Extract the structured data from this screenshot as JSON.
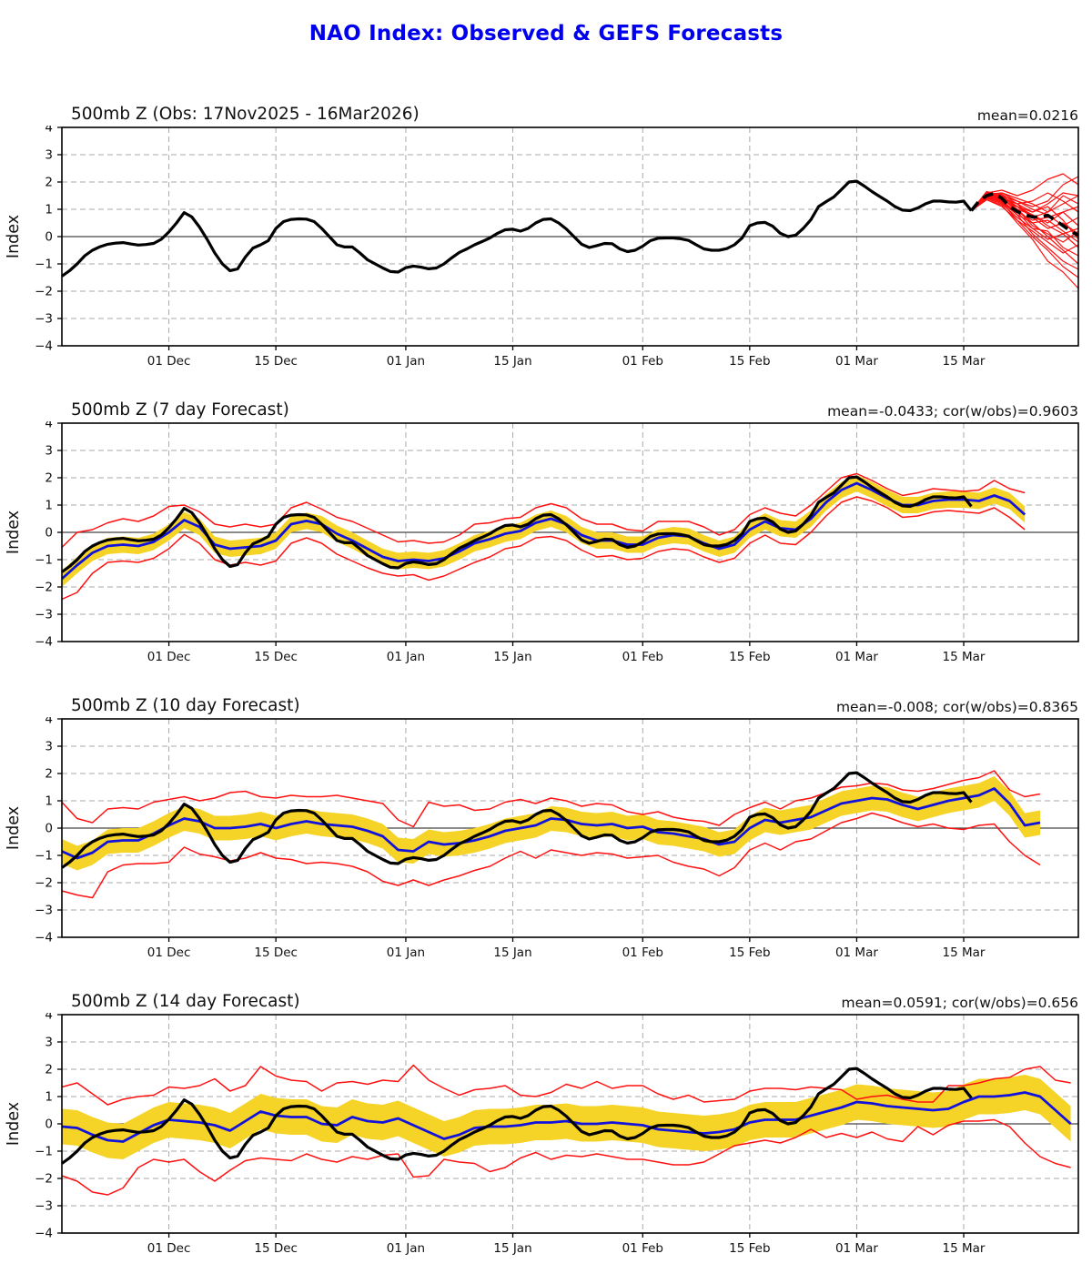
{
  "page": {
    "title": "NAO Index: Observed & GEFS Forecasts"
  },
  "colors": {
    "title_blue": "#0000EE",
    "observed_black": "#000000",
    "ensemble_red": "#FF1010",
    "mean_blue": "#1212DD",
    "band_gold": "#F6D327",
    "grid_gray": "#AAAAAA",
    "zero_line": "#444444"
  },
  "chart_data": {
    "type": "line",
    "x_unit": "days since 17Nov2025",
    "x_domain": [
      0,
      133
    ],
    "ylim": [
      -4,
      4
    ],
    "ylabel": "Index",
    "grid": "dashed",
    "y_ticks": [
      4,
      3,
      2,
      1,
      0,
      -1,
      -2,
      -3,
      -4
    ],
    "x_ticks": [
      {
        "day": 14,
        "label": "01 Dec"
      },
      {
        "day": 28,
        "label": "15 Dec"
      },
      {
        "day": 45,
        "label": "01 Jan"
      },
      {
        "day": 59,
        "label": "15 Jan"
      },
      {
        "day": 76,
        "label": "01 Feb"
      },
      {
        "day": 90,
        "label": "15 Feb"
      },
      {
        "day": 104,
        "label": "01 Mar"
      },
      {
        "day": 118,
        "label": "15 Mar"
      }
    ],
    "observed": {
      "name": "observed NAO index",
      "day0": 0,
      "step": 1,
      "values": [
        -1.45,
        -1.25,
        -1.0,
        -0.7,
        -0.5,
        -0.37,
        -0.28,
        -0.24,
        -0.22,
        -0.27,
        -0.31,
        -0.29,
        -0.25,
        -0.1,
        0.17,
        0.5,
        0.88,
        0.72,
        0.35,
        -0.1,
        -0.6,
        -1.0,
        -1.25,
        -1.18,
        -0.75,
        -0.42,
        -0.3,
        -0.15,
        0.3,
        0.55,
        0.63,
        0.65,
        0.64,
        0.55,
        0.3,
        0.0,
        -0.3,
        -0.38,
        -0.38,
        -0.6,
        -0.85,
        -1.0,
        -1.15,
        -1.28,
        -1.3,
        -1.14,
        -1.08,
        -1.12,
        -1.18,
        -1.15,
        -1.0,
        -0.78,
        -0.58,
        -0.45,
        -0.3,
        -0.18,
        -0.05,
        0.12,
        0.25,
        0.27,
        0.2,
        0.3,
        0.5,
        0.63,
        0.65,
        0.5,
        0.28,
        0.0,
        -0.28,
        -0.4,
        -0.33,
        -0.25,
        -0.26,
        -0.45,
        -0.55,
        -0.5,
        -0.35,
        -0.15,
        -0.06,
        -0.05,
        -0.05,
        -0.08,
        -0.14,
        -0.3,
        -0.45,
        -0.5,
        -0.5,
        -0.44,
        -0.3,
        -0.05,
        0.4,
        0.5,
        0.52,
        0.38,
        0.12,
        0.0,
        0.05,
        0.3,
        0.62,
        1.1,
        1.28,
        1.45,
        1.72,
        2.0,
        2.03,
        1.85,
        1.65,
        1.47,
        1.3,
        1.1,
        0.97,
        0.95,
        1.05,
        1.2,
        1.3,
        1.3,
        1.27,
        1.26,
        1.3,
        0.95
      ]
    },
    "panels": [
      {
        "id": "obs",
        "title": "500mb Z (Obs: 17Nov2025 - 16Mar2026)",
        "stats": "mean=0.0216",
        "forecast_mean_dashed": {
          "day0": 119,
          "step": 1,
          "values": [
            0.95,
            1.3,
            1.5,
            1.58,
            1.4,
            1.1,
            0.92,
            0.8,
            0.72,
            0.72,
            0.78,
            0.6,
            0.4,
            0.2,
            0.05
          ]
        },
        "ensemble_days": [
          119,
          121,
          123,
          125,
          127,
          129,
          131,
          133
        ],
        "ensemble_members": [
          [
            0.95,
            1.55,
            1.6,
            1.3,
            1.1,
            1.3,
            1.9,
            2.2
          ],
          [
            0.95,
            1.6,
            1.7,
            1.5,
            1.7,
            2.1,
            2.3,
            1.9
          ],
          [
            0.95,
            1.5,
            1.45,
            1.2,
            0.9,
            1.2,
            1.6,
            1.5
          ],
          [
            0.95,
            1.65,
            1.5,
            1.1,
            0.7,
            0.9,
            1.2,
            1.5
          ],
          [
            0.95,
            1.45,
            1.35,
            1.0,
            0.8,
            0.5,
            0.9,
            1.1
          ],
          [
            0.95,
            1.55,
            1.5,
            1.3,
            1.0,
            0.8,
            0.4,
            0.7
          ],
          [
            0.95,
            1.4,
            1.3,
            0.9,
            0.6,
            0.7,
            0.9,
            0.4
          ],
          [
            0.95,
            1.5,
            1.4,
            1.1,
            0.8,
            0.4,
            0.1,
            0.3
          ],
          [
            0.95,
            1.6,
            1.55,
            1.2,
            0.7,
            0.3,
            0.5,
            0.1
          ],
          [
            0.95,
            1.45,
            1.25,
            0.8,
            0.5,
            0.6,
            0.2,
            -0.2
          ],
          [
            0.95,
            1.5,
            1.35,
            1.0,
            0.4,
            0.1,
            -0.2,
            0.2
          ],
          [
            0.95,
            1.55,
            1.45,
            0.9,
            0.3,
            -0.1,
            0.1,
            -0.4
          ],
          [
            0.95,
            1.4,
            1.2,
            0.7,
            0.3,
            0.2,
            -0.4,
            -0.7
          ],
          [
            0.95,
            1.35,
            1.1,
            0.6,
            0.2,
            -0.2,
            -0.6,
            -0.3
          ],
          [
            0.95,
            1.5,
            1.3,
            0.8,
            0.1,
            -0.4,
            -0.9,
            -1.2
          ],
          [
            0.95,
            1.6,
            1.5,
            1.0,
            0.5,
            0.0,
            -0.5,
            -1.0
          ],
          [
            0.95,
            1.45,
            1.25,
            0.6,
            0.0,
            -0.5,
            -1.1,
            -1.5
          ],
          [
            0.95,
            1.35,
            1.15,
            0.5,
            -0.1,
            -0.9,
            -1.3,
            -1.9
          ],
          [
            0.95,
            1.55,
            1.4,
            1.2,
            1.3,
            1.6,
            1.3,
            0.9
          ],
          [
            0.95,
            1.5,
            1.6,
            1.4,
            1.2,
            0.9,
            1.5,
            1.2
          ],
          [
            0.95,
            1.4,
            1.3,
            1.1,
            0.9,
            1.1,
            0.6,
            -0.1
          ]
        ]
      },
      {
        "id": "f7",
        "title": "500mb Z (7 day Forecast)",
        "stats": "mean=-0.0433; cor(w/obs)=0.9603",
        "band_halfwidth": 0.3,
        "mean": {
          "day0": 0,
          "step": 2,
          "values": [
            -1.7,
            -1.2,
            -0.75,
            -0.5,
            -0.45,
            -0.5,
            -0.35,
            0.0,
            0.45,
            0.2,
            -0.45,
            -0.6,
            -0.55,
            -0.5,
            -0.3,
            0.3,
            0.42,
            0.3,
            -0.05,
            -0.3,
            -0.6,
            -0.9,
            -1.05,
            -1.0,
            -1.05,
            -0.95,
            -0.7,
            -0.4,
            -0.25,
            -0.05,
            0.05,
            0.35,
            0.5,
            0.3,
            -0.1,
            -0.3,
            -0.3,
            -0.45,
            -0.45,
            -0.2,
            -0.1,
            -0.15,
            -0.4,
            -0.6,
            -0.45,
            0.1,
            0.4,
            0.15,
            0.1,
            0.5,
            1.1,
            1.55,
            1.8,
            1.55,
            1.25,
            1.0,
            1.0,
            1.15,
            1.2,
            1.2,
            1.15,
            1.35,
            1.15,
            0.65
          ]
        },
        "env_upper": {
          "day0": 0,
          "step": 2,
          "values": [
            -0.55,
            0.0,
            0.1,
            0.35,
            0.5,
            0.4,
            0.6,
            0.95,
            1.0,
            0.75,
            0.3,
            0.2,
            0.3,
            0.2,
            0.3,
            0.9,
            1.1,
            0.85,
            0.55,
            0.4,
            0.15,
            -0.1,
            -0.35,
            -0.3,
            -0.4,
            -0.35,
            -0.1,
            0.3,
            0.35,
            0.5,
            0.55,
            0.9,
            1.05,
            0.9,
            0.5,
            0.3,
            0.3,
            0.1,
            0.05,
            0.4,
            0.4,
            0.4,
            0.2,
            -0.1,
            0.1,
            0.65,
            0.9,
            0.7,
            0.6,
            1.0,
            1.5,
            2.0,
            2.15,
            1.9,
            1.6,
            1.35,
            1.45,
            1.6,
            1.55,
            1.5,
            1.55,
            1.9,
            1.6,
            1.45
          ]
        },
        "env_lower": {
          "day0": 0,
          "step": 2,
          "values": [
            -2.45,
            -2.2,
            -1.5,
            -1.1,
            -1.05,
            -1.1,
            -0.95,
            -0.6,
            -0.08,
            -0.4,
            -1.0,
            -1.2,
            -1.1,
            -1.2,
            -1.05,
            -0.4,
            -0.2,
            -0.4,
            -0.8,
            -1.05,
            -1.3,
            -1.5,
            -1.6,
            -1.55,
            -1.75,
            -1.6,
            -1.35,
            -1.1,
            -0.9,
            -0.6,
            -0.5,
            -0.2,
            -0.15,
            -0.3,
            -0.65,
            -0.9,
            -0.85,
            -1.0,
            -0.95,
            -0.7,
            -0.6,
            -0.65,
            -0.9,
            -1.1,
            -0.95,
            -0.4,
            -0.1,
            -0.4,
            -0.45,
            0.0,
            0.6,
            1.1,
            1.3,
            1.15,
            0.9,
            0.55,
            0.6,
            0.75,
            0.8,
            0.75,
            0.7,
            0.9,
            0.55,
            0.1
          ]
        }
      },
      {
        "id": "f10",
        "title": "500mb Z (10 day Forecast)",
        "stats": "mean=-0.008; cor(w/obs)=0.8365",
        "band_halfwidth": 0.45,
        "mean": {
          "day0": 0,
          "step": 2,
          "values": [
            -0.85,
            -1.1,
            -0.9,
            -0.5,
            -0.45,
            -0.45,
            -0.2,
            0.1,
            0.35,
            0.25,
            0.0,
            0.0,
            0.05,
            0.15,
            0.0,
            0.15,
            0.25,
            0.15,
            0.1,
            0.05,
            -0.1,
            -0.3,
            -0.8,
            -0.85,
            -0.5,
            -0.6,
            -0.55,
            -0.45,
            -0.3,
            -0.1,
            0.0,
            0.1,
            0.35,
            0.3,
            0.15,
            0.1,
            0.15,
            0.0,
            0.05,
            -0.15,
            -0.2,
            -0.3,
            -0.4,
            -0.6,
            -0.5,
            0.0,
            0.3,
            0.2,
            0.3,
            0.4,
            0.65,
            0.9,
            1.0,
            1.1,
            1.05,
            0.85,
            0.7,
            0.85,
            1.0,
            1.1,
            1.2,
            1.45,
            0.9,
            0.1,
            0.2
          ]
        },
        "env_upper": {
          "day0": 0,
          "step": 2,
          "values": [
            0.95,
            0.35,
            0.2,
            0.7,
            0.75,
            0.7,
            0.95,
            1.05,
            1.15,
            1.0,
            1.1,
            1.3,
            1.35,
            1.15,
            1.1,
            1.2,
            1.15,
            1.15,
            1.2,
            1.1,
            1.0,
            0.9,
            0.3,
            0.05,
            0.95,
            0.8,
            0.85,
            0.65,
            0.7,
            0.95,
            1.05,
            0.9,
            1.1,
            1.0,
            0.8,
            0.9,
            0.85,
            0.6,
            0.5,
            0.6,
            0.4,
            0.3,
            0.25,
            0.1,
            0.5,
            0.75,
            0.95,
            0.7,
            1.0,
            1.1,
            1.3,
            1.5,
            1.55,
            1.65,
            1.6,
            1.4,
            1.35,
            1.45,
            1.6,
            1.75,
            1.85,
            2.1,
            1.4,
            1.15,
            1.25
          ]
        },
        "env_lower": {
          "day0": 0,
          "step": 2,
          "values": [
            -2.3,
            -2.45,
            -2.55,
            -1.6,
            -1.35,
            -1.3,
            -1.3,
            -1.25,
            -0.7,
            -0.95,
            -1.05,
            -1.2,
            -1.1,
            -0.9,
            -1.1,
            -1.15,
            -1.3,
            -1.25,
            -1.3,
            -1.4,
            -1.6,
            -1.95,
            -2.1,
            -1.9,
            -2.1,
            -1.9,
            -1.75,
            -1.55,
            -1.4,
            -1.1,
            -0.85,
            -1.1,
            -0.8,
            -0.9,
            -1.0,
            -0.9,
            -0.95,
            -1.1,
            -1.05,
            -1.0,
            -1.25,
            -1.4,
            -1.5,
            -1.75,
            -1.45,
            -0.8,
            -0.55,
            -0.8,
            -0.5,
            -0.4,
            -0.1,
            0.2,
            0.35,
            0.55,
            0.4,
            0.2,
            0.05,
            0.15,
            0.0,
            -0.05,
            0.1,
            0.15,
            -0.5,
            -1.0,
            -1.35
          ]
        }
      },
      {
        "id": "f14",
        "title": "500mb Z (14 day Forecast)",
        "stats": "mean=0.0591; cor(w/obs)=0.656",
        "band_halfwidth": 0.65,
        "mean": {
          "day0": 0,
          "step": 2,
          "values": [
            -0.1,
            -0.15,
            -0.4,
            -0.6,
            -0.65,
            -0.35,
            -0.05,
            0.15,
            0.1,
            0.05,
            -0.05,
            -0.25,
            0.1,
            0.45,
            0.3,
            0.25,
            0.25,
            0.0,
            -0.05,
            0.25,
            0.1,
            0.05,
            0.2,
            -0.05,
            -0.3,
            -0.55,
            -0.4,
            -0.15,
            -0.1,
            -0.1,
            -0.05,
            0.05,
            0.05,
            0.1,
            0.0,
            0.0,
            0.05,
            0.0,
            -0.05,
            -0.2,
            -0.25,
            -0.3,
            -0.35,
            -0.3,
            -0.2,
            0.05,
            0.15,
            0.15,
            0.15,
            0.3,
            0.45,
            0.6,
            0.8,
            0.75,
            0.65,
            0.6,
            0.55,
            0.5,
            0.55,
            0.8,
            1.0,
            1.0,
            1.05,
            1.15,
            1.0,
            0.5,
            0.0
          ]
        },
        "env_upper": {
          "day0": 0,
          "step": 2,
          "values": [
            1.35,
            1.5,
            1.1,
            0.7,
            0.9,
            1.0,
            1.05,
            1.35,
            1.3,
            1.4,
            1.65,
            1.2,
            1.4,
            2.1,
            1.75,
            1.6,
            1.55,
            1.2,
            1.5,
            1.55,
            1.45,
            1.6,
            1.55,
            2.15,
            1.6,
            1.3,
            1.05,
            1.25,
            1.3,
            1.4,
            1.05,
            1.0,
            1.15,
            1.45,
            1.3,
            1.55,
            1.3,
            1.4,
            1.4,
            1.1,
            0.9,
            1.05,
            0.8,
            0.85,
            0.9,
            1.2,
            1.3,
            1.3,
            1.25,
            1.35,
            1.3,
            1.25,
            0.9,
            1.0,
            1.05,
            0.9,
            0.8,
            0.8,
            1.4,
            1.4,
            1.5,
            1.65,
            1.7,
            2.0,
            2.1,
            1.6,
            1.5
          ]
        },
        "env_lower": {
          "day0": 0,
          "step": 2,
          "values": [
            -1.9,
            -2.1,
            -2.5,
            -2.6,
            -2.35,
            -1.6,
            -1.3,
            -1.4,
            -1.3,
            -1.75,
            -2.1,
            -1.7,
            -1.35,
            -1.25,
            -1.3,
            -1.35,
            -1.1,
            -1.3,
            -1.4,
            -1.2,
            -1.3,
            -1.15,
            -1.1,
            -1.95,
            -1.9,
            -1.3,
            -1.4,
            -1.45,
            -1.75,
            -1.6,
            -1.25,
            -1.05,
            -1.3,
            -1.15,
            -1.2,
            -1.1,
            -1.2,
            -1.3,
            -1.3,
            -1.4,
            -1.5,
            -1.5,
            -1.4,
            -1.1,
            -0.8,
            -0.7,
            -0.6,
            -0.7,
            -0.5,
            -0.2,
            -0.5,
            -0.35,
            -0.5,
            -0.3,
            -0.55,
            -0.65,
            -0.1,
            -0.4,
            -0.05,
            0.1,
            0.1,
            0.15,
            -0.1,
            -0.7,
            -1.2,
            -1.45,
            -1.6
          ]
        }
      }
    ]
  }
}
